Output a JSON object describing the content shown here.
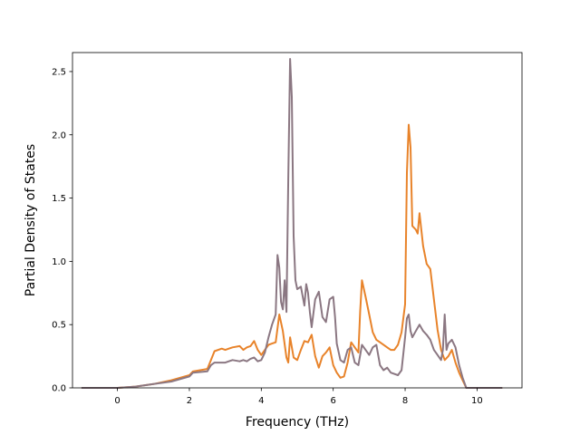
{
  "chart_data": {
    "type": "line",
    "title": "",
    "xlabel": "Frequency (THz)",
    "ylabel": "Partial Density of States",
    "xlim": [
      -1.25,
      11.25
    ],
    "ylim": [
      0.0,
      2.65
    ],
    "xticks": [
      0,
      2,
      4,
      6,
      8,
      10
    ],
    "yticks": [
      0.0,
      0.5,
      1.0,
      1.5,
      2.0,
      2.5
    ],
    "xtick_labels": [
      "0",
      "2",
      "4",
      "6",
      "8",
      "10"
    ],
    "ytick_labels": [
      "0.0",
      "0.5",
      "1.0",
      "1.5",
      "2.0",
      "2.5"
    ],
    "grid": false,
    "legend": "none",
    "series": [
      {
        "color": "#e8832a",
        "points": [
          [
            -1.0,
            0.0
          ],
          [
            0.0,
            0.0
          ],
          [
            0.5,
            0.01
          ],
          [
            1.0,
            0.03
          ],
          [
            1.5,
            0.06
          ],
          [
            2.0,
            0.1
          ],
          [
            2.1,
            0.13
          ],
          [
            2.5,
            0.15
          ],
          [
            2.6,
            0.22
          ],
          [
            2.7,
            0.29
          ],
          [
            2.9,
            0.31
          ],
          [
            3.0,
            0.3
          ],
          [
            3.2,
            0.32
          ],
          [
            3.4,
            0.33
          ],
          [
            3.5,
            0.3
          ],
          [
            3.6,
            0.32
          ],
          [
            3.7,
            0.33
          ],
          [
            3.8,
            0.37
          ],
          [
            3.9,
            0.3
          ],
          [
            4.0,
            0.26
          ],
          [
            4.1,
            0.3
          ],
          [
            4.2,
            0.34
          ],
          [
            4.3,
            0.35
          ],
          [
            4.4,
            0.36
          ],
          [
            4.5,
            0.58
          ],
          [
            4.6,
            0.45
          ],
          [
            4.7,
            0.24
          ],
          [
            4.75,
            0.2
          ],
          [
            4.8,
            0.4
          ],
          [
            4.9,
            0.24
          ],
          [
            5.0,
            0.22
          ],
          [
            5.1,
            0.3
          ],
          [
            5.2,
            0.37
          ],
          [
            5.3,
            0.36
          ],
          [
            5.4,
            0.42
          ],
          [
            5.5,
            0.25
          ],
          [
            5.6,
            0.16
          ],
          [
            5.7,
            0.25
          ],
          [
            5.8,
            0.28
          ],
          [
            5.9,
            0.32
          ],
          [
            6.0,
            0.18
          ],
          [
            6.1,
            0.12
          ],
          [
            6.2,
            0.08
          ],
          [
            6.3,
            0.09
          ],
          [
            6.4,
            0.2
          ],
          [
            6.5,
            0.36
          ],
          [
            6.6,
            0.32
          ],
          [
            6.7,
            0.28
          ],
          [
            6.75,
            0.6
          ],
          [
            6.8,
            0.85
          ],
          [
            6.9,
            0.72
          ],
          [
            7.0,
            0.58
          ],
          [
            7.1,
            0.44
          ],
          [
            7.2,
            0.38
          ],
          [
            7.3,
            0.36
          ],
          [
            7.5,
            0.32
          ],
          [
            7.6,
            0.3
          ],
          [
            7.7,
            0.3
          ],
          [
            7.8,
            0.34
          ],
          [
            7.9,
            0.44
          ],
          [
            8.0,
            0.66
          ],
          [
            8.05,
            1.7
          ],
          [
            8.1,
            2.08
          ],
          [
            8.15,
            1.9
          ],
          [
            8.2,
            1.28
          ],
          [
            8.3,
            1.25
          ],
          [
            8.35,
            1.22
          ],
          [
            8.4,
            1.38
          ],
          [
            8.5,
            1.12
          ],
          [
            8.6,
            0.98
          ],
          [
            8.7,
            0.94
          ],
          [
            8.8,
            0.7
          ],
          [
            8.9,
            0.46
          ],
          [
            9.0,
            0.3
          ],
          [
            9.1,
            0.22
          ],
          [
            9.2,
            0.25
          ],
          [
            9.3,
            0.3
          ],
          [
            9.4,
            0.2
          ],
          [
            9.5,
            0.12
          ],
          [
            9.6,
            0.06
          ],
          [
            9.7,
            0.0
          ],
          [
            10.7,
            0.0
          ]
        ]
      },
      {
        "color": "#8b7782",
        "points": [
          [
            -1.0,
            0.0
          ],
          [
            0.0,
            0.0
          ],
          [
            0.5,
            0.01
          ],
          [
            1.0,
            0.03
          ],
          [
            1.5,
            0.05
          ],
          [
            2.0,
            0.09
          ],
          [
            2.1,
            0.12
          ],
          [
            2.5,
            0.13
          ],
          [
            2.6,
            0.18
          ],
          [
            2.7,
            0.2
          ],
          [
            2.9,
            0.2
          ],
          [
            3.0,
            0.2
          ],
          [
            3.2,
            0.22
          ],
          [
            3.4,
            0.21
          ],
          [
            3.5,
            0.22
          ],
          [
            3.6,
            0.21
          ],
          [
            3.7,
            0.23
          ],
          [
            3.8,
            0.24
          ],
          [
            3.9,
            0.21
          ],
          [
            4.0,
            0.22
          ],
          [
            4.1,
            0.28
          ],
          [
            4.2,
            0.4
          ],
          [
            4.3,
            0.5
          ],
          [
            4.4,
            0.58
          ],
          [
            4.45,
            1.05
          ],
          [
            4.5,
            0.95
          ],
          [
            4.55,
            0.68
          ],
          [
            4.6,
            0.62
          ],
          [
            4.65,
            0.85
          ],
          [
            4.7,
            0.6
          ],
          [
            4.75,
            1.65
          ],
          [
            4.8,
            2.6
          ],
          [
            4.85,
            2.3
          ],
          [
            4.9,
            1.2
          ],
          [
            4.95,
            0.85
          ],
          [
            5.0,
            0.78
          ],
          [
            5.1,
            0.8
          ],
          [
            5.2,
            0.65
          ],
          [
            5.25,
            0.82
          ],
          [
            5.3,
            0.75
          ],
          [
            5.35,
            0.6
          ],
          [
            5.4,
            0.48
          ],
          [
            5.5,
            0.7
          ],
          [
            5.6,
            0.76
          ],
          [
            5.7,
            0.56
          ],
          [
            5.8,
            0.52
          ],
          [
            5.9,
            0.7
          ],
          [
            6.0,
            0.72
          ],
          [
            6.05,
            0.56
          ],
          [
            6.1,
            0.35
          ],
          [
            6.2,
            0.22
          ],
          [
            6.3,
            0.2
          ],
          [
            6.4,
            0.3
          ],
          [
            6.5,
            0.32
          ],
          [
            6.6,
            0.2
          ],
          [
            6.7,
            0.18
          ],
          [
            6.8,
            0.34
          ],
          [
            6.9,
            0.3
          ],
          [
            7.0,
            0.26
          ],
          [
            7.1,
            0.32
          ],
          [
            7.2,
            0.34
          ],
          [
            7.3,
            0.18
          ],
          [
            7.4,
            0.14
          ],
          [
            7.5,
            0.16
          ],
          [
            7.6,
            0.12
          ],
          [
            7.8,
            0.1
          ],
          [
            7.9,
            0.14
          ],
          [
            8.0,
            0.4
          ],
          [
            8.05,
            0.55
          ],
          [
            8.1,
            0.58
          ],
          [
            8.15,
            0.45
          ],
          [
            8.2,
            0.4
          ],
          [
            8.3,
            0.45
          ],
          [
            8.4,
            0.5
          ],
          [
            8.5,
            0.45
          ],
          [
            8.6,
            0.42
          ],
          [
            8.7,
            0.38
          ],
          [
            8.8,
            0.3
          ],
          [
            8.9,
            0.26
          ],
          [
            9.0,
            0.22
          ],
          [
            9.05,
            0.3
          ],
          [
            9.1,
            0.58
          ],
          [
            9.15,
            0.3
          ],
          [
            9.2,
            0.35
          ],
          [
            9.3,
            0.38
          ],
          [
            9.4,
            0.32
          ],
          [
            9.5,
            0.18
          ],
          [
            9.6,
            0.08
          ],
          [
            9.7,
            0.0
          ],
          [
            10.7,
            0.0
          ]
        ]
      }
    ]
  }
}
